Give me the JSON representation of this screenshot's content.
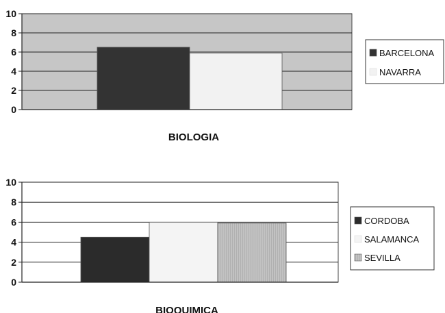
{
  "chart_data": [
    {
      "type": "bar",
      "title": "",
      "xlabel": "BIOLOGIA",
      "ylabel": "",
      "ylim": [
        0,
        10
      ],
      "yticks": [
        "0",
        "2",
        "4",
        "6",
        "8",
        "10"
      ],
      "grid": true,
      "legend_position": "right",
      "plot_background": "#c6c6c6",
      "categories": [
        "BIOLOGIA"
      ],
      "series": [
        {
          "name": "BARCELONA",
          "values": [
            6.5
          ],
          "color": "#333333"
        },
        {
          "name": "NAVARRA",
          "values": [
            5.9
          ],
          "color": "#f2f2f2"
        }
      ]
    },
    {
      "type": "bar",
      "title": "",
      "xlabel": "BIOQUIMICA",
      "ylabel": "",
      "ylim": [
        0,
        10
      ],
      "yticks": [
        "0",
        "2",
        "4",
        "6",
        "8",
        "10"
      ],
      "grid": true,
      "legend_position": "right",
      "plot_background": "#ffffff",
      "categories": [
        "BIOQUIMICA"
      ],
      "series": [
        {
          "name": "CORDOBA",
          "values": [
            4.5
          ],
          "color": "#2b2b2b"
        },
        {
          "name": "SALAMANCA",
          "values": [
            6.0
          ],
          "color": "#f4f4f4"
        },
        {
          "name": "SEVILLA",
          "values": [
            5.9
          ],
          "color": "#c2c2c2"
        }
      ]
    }
  ]
}
